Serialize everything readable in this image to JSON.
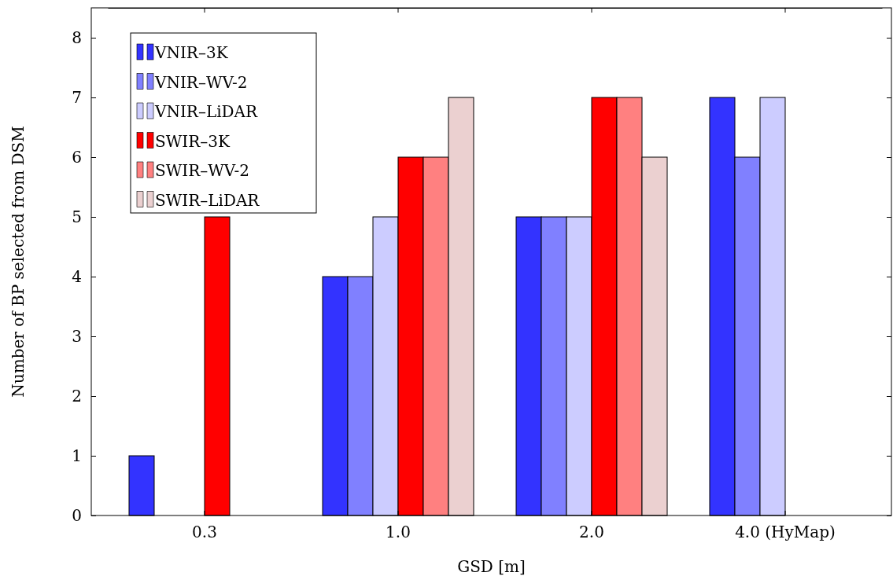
{
  "chart_data": {
    "type": "bar",
    "xlabel": "GSD [m]",
    "ylabel": "Number of BP selected from DSM",
    "categories": [
      "0.3",
      "1.0",
      "2.0",
      "4.0 (HyMap)"
    ],
    "ylim": [
      0,
      8.5
    ],
    "yticks": [
      0,
      1,
      2,
      3,
      4,
      5,
      6,
      7,
      8
    ],
    "legend": "top left",
    "series": [
      {
        "name": "VNIR–3K",
        "color": "#3333ff",
        "values": [
          1,
          4,
          5,
          7
        ]
      },
      {
        "name": "VNIR–WV-2",
        "color": "#8080ff",
        "values": [
          null,
          4,
          5,
          6
        ]
      },
      {
        "name": "VNIR–LiDAR",
        "color": "#ccccff",
        "values": [
          null,
          5,
          5,
          7
        ]
      },
      {
        "name": "SWIR–3K",
        "color": "#ff0000",
        "values": [
          5,
          6,
          7,
          null
        ]
      },
      {
        "name": "SWIR–WV-2",
        "color": "#ff8080",
        "values": [
          null,
          6,
          7,
          null
        ]
      },
      {
        "name": "SWIR–LiDAR",
        "color": "#ebd0d0",
        "values": [
          null,
          7,
          6,
          null
        ]
      }
    ]
  }
}
